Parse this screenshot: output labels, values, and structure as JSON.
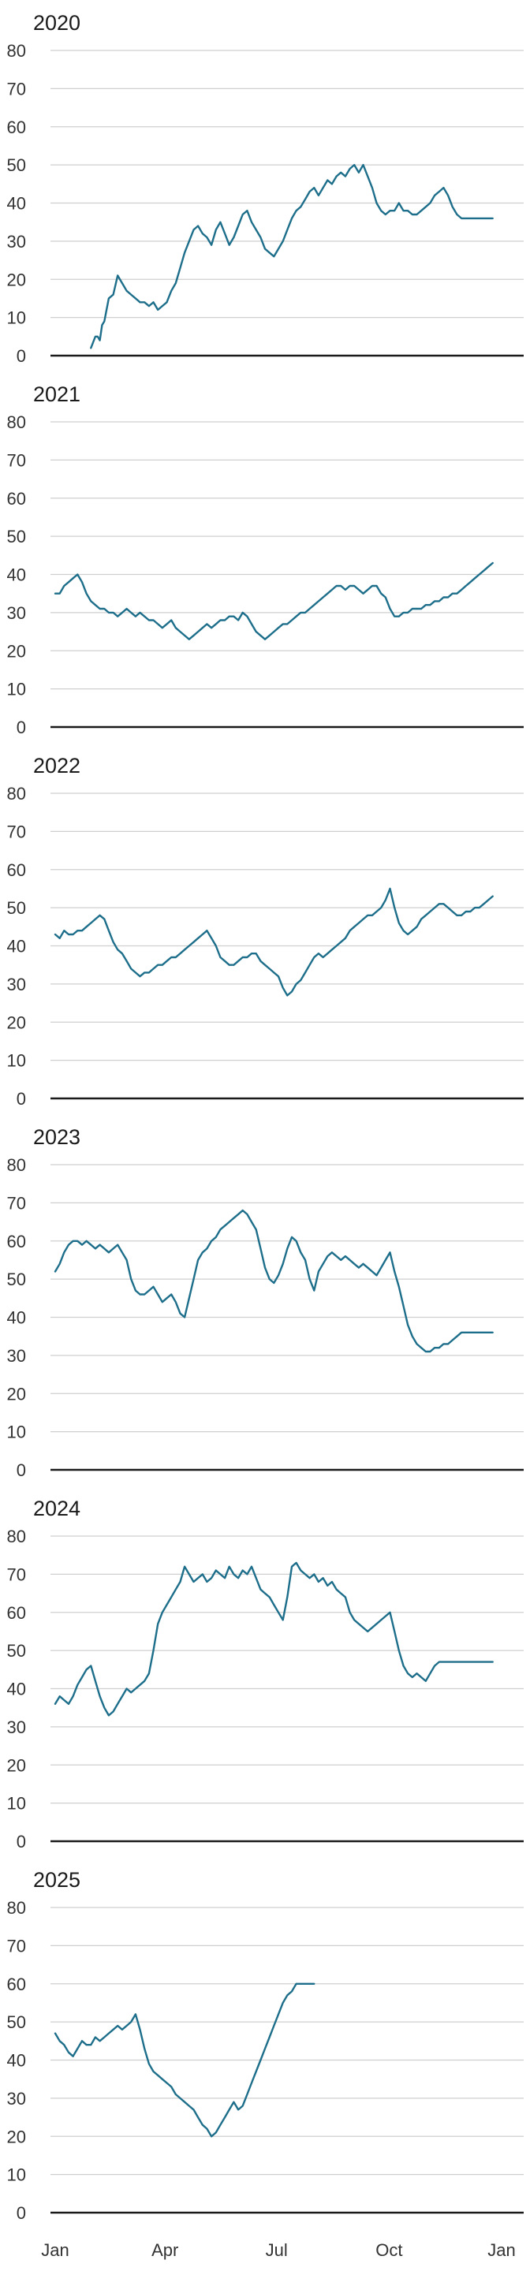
{
  "colors": {
    "line": "#1d6e8a",
    "grid": "#cfcfcf",
    "axis": "#1a1a1a",
    "text": "#333333"
  },
  "chart_data": [
    {
      "type": "line",
      "title": "2020",
      "ylim": [
        0,
        80
      ],
      "yticks": [
        0,
        10,
        20,
        30,
        40,
        50,
        60,
        70,
        80
      ],
      "x": [
        0.08,
        0.09,
        0.095,
        0.1,
        0.105,
        0.11,
        0.115,
        0.12,
        0.13,
        0.14,
        0.15,
        0.155,
        0.16,
        0.17,
        0.18,
        0.19,
        0.2,
        0.21,
        0.22,
        0.23,
        0.24,
        0.25,
        0.26,
        0.27,
        0.28,
        0.29,
        0.3,
        0.31,
        0.32,
        0.33,
        0.34,
        0.35,
        0.36,
        0.37,
        0.38,
        0.39,
        0.4,
        0.41,
        0.42,
        0.43,
        0.44,
        0.45,
        0.46,
        0.47,
        0.48,
        0.49,
        0.5,
        0.51,
        0.52,
        0.53,
        0.54,
        0.55,
        0.56,
        0.57,
        0.58,
        0.59,
        0.6,
        0.61,
        0.62,
        0.63,
        0.64,
        0.65,
        0.66,
        0.67,
        0.68,
        0.69,
        0.7,
        0.71,
        0.72,
        0.73,
        0.74,
        0.75,
        0.76,
        0.77,
        0.78,
        0.79,
        0.8,
        0.81,
        0.82,
        0.83,
        0.84,
        0.85,
        0.86,
        0.87,
        0.88,
        0.89,
        0.9,
        0.91,
        0.92,
        0.93,
        0.94,
        0.95,
        0.96,
        0.97,
        0.98
      ],
      "values": [
        2,
        5,
        5,
        4,
        8,
        9,
        12,
        15,
        16,
        21,
        19,
        18,
        17,
        16,
        15,
        14,
        14,
        13,
        14,
        12,
        13,
        14,
        17,
        19,
        23,
        27,
        30,
        33,
        34,
        32,
        31,
        29,
        33,
        35,
        32,
        29,
        31,
        34,
        37,
        38,
        35,
        33,
        31,
        28,
        27,
        26,
        28,
        30,
        33,
        36,
        38,
        39,
        41,
        43,
        44,
        42,
        44,
        46,
        45,
        47,
        48,
        47,
        49,
        50,
        48,
        50,
        47,
        44,
        40,
        38,
        37,
        38,
        38,
        40,
        38,
        38,
        37,
        37,
        38,
        39,
        40,
        42,
        43,
        44,
        42,
        39,
        37,
        36,
        36,
        36,
        36,
        36,
        36,
        36,
        36
      ]
    },
    {
      "type": "line",
      "title": "2021",
      "ylim": [
        0,
        80
      ],
      "yticks": [
        0,
        10,
        20,
        30,
        40,
        50,
        60,
        70,
        80
      ],
      "x": [
        0.0,
        0.01,
        0.02,
        0.03,
        0.04,
        0.05,
        0.06,
        0.07,
        0.08,
        0.09,
        0.1,
        0.11,
        0.12,
        0.13,
        0.14,
        0.15,
        0.16,
        0.17,
        0.18,
        0.19,
        0.2,
        0.21,
        0.22,
        0.23,
        0.24,
        0.25,
        0.26,
        0.27,
        0.28,
        0.29,
        0.3,
        0.31,
        0.32,
        0.33,
        0.34,
        0.35,
        0.36,
        0.37,
        0.38,
        0.39,
        0.4,
        0.41,
        0.42,
        0.43,
        0.44,
        0.45,
        0.46,
        0.47,
        0.48,
        0.49,
        0.5,
        0.51,
        0.52,
        0.53,
        0.54,
        0.55,
        0.56,
        0.57,
        0.58,
        0.59,
        0.6,
        0.61,
        0.62,
        0.63,
        0.64,
        0.65,
        0.66,
        0.67,
        0.68,
        0.69,
        0.7,
        0.71,
        0.72,
        0.73,
        0.74,
        0.75,
        0.76,
        0.77,
        0.78,
        0.79,
        0.8,
        0.81,
        0.82,
        0.83,
        0.84,
        0.85,
        0.86,
        0.87,
        0.88,
        0.89,
        0.9,
        0.91,
        0.92,
        0.93,
        0.94,
        0.95,
        0.96,
        0.97,
        0.98
      ],
      "values": [
        35,
        35,
        37,
        38,
        39,
        40,
        38,
        35,
        33,
        32,
        31,
        31,
        30,
        30,
        29,
        30,
        31,
        30,
        29,
        30,
        29,
        28,
        28,
        27,
        26,
        27,
        28,
        26,
        25,
        24,
        23,
        24,
        25,
        26,
        27,
        26,
        27,
        28,
        28,
        29,
        29,
        28,
        30,
        29,
        27,
        25,
        24,
        23,
        24,
        25,
        26,
        27,
        27,
        28,
        29,
        30,
        30,
        31,
        32,
        33,
        34,
        35,
        36,
        37,
        37,
        36,
        37,
        37,
        36,
        35,
        36,
        37,
        37,
        35,
        34,
        31,
        29,
        29,
        30,
        30,
        31,
        31,
        31,
        32,
        32,
        33,
        33,
        34,
        34,
        35,
        35,
        36,
        37,
        38,
        39,
        40,
        41,
        42,
        43
      ]
    },
    {
      "type": "line",
      "title": "2022",
      "ylim": [
        0,
        80
      ],
      "yticks": [
        0,
        10,
        20,
        30,
        40,
        50,
        60,
        70,
        80
      ],
      "x": [
        0.0,
        0.01,
        0.02,
        0.03,
        0.04,
        0.05,
        0.06,
        0.07,
        0.08,
        0.09,
        0.1,
        0.11,
        0.12,
        0.13,
        0.14,
        0.15,
        0.16,
        0.17,
        0.18,
        0.19,
        0.2,
        0.21,
        0.22,
        0.23,
        0.24,
        0.25,
        0.26,
        0.27,
        0.28,
        0.29,
        0.3,
        0.31,
        0.32,
        0.33,
        0.34,
        0.35,
        0.36,
        0.37,
        0.38,
        0.39,
        0.4,
        0.41,
        0.42,
        0.43,
        0.44,
        0.45,
        0.46,
        0.47,
        0.48,
        0.49,
        0.5,
        0.51,
        0.52,
        0.53,
        0.54,
        0.55,
        0.56,
        0.57,
        0.58,
        0.59,
        0.6,
        0.61,
        0.62,
        0.63,
        0.64,
        0.65,
        0.66,
        0.67,
        0.68,
        0.69,
        0.7,
        0.71,
        0.72,
        0.73,
        0.74,
        0.75,
        0.76,
        0.77,
        0.78,
        0.79,
        0.8,
        0.81,
        0.82,
        0.83,
        0.84,
        0.85,
        0.86,
        0.87,
        0.88,
        0.89,
        0.9,
        0.91,
        0.92,
        0.93,
        0.94,
        0.95,
        0.96,
        0.97,
        0.98
      ],
      "values": [
        43,
        42,
        44,
        43,
        43,
        44,
        44,
        45,
        46,
        47,
        48,
        47,
        44,
        41,
        39,
        38,
        36,
        34,
        33,
        32,
        33,
        33,
        34,
        35,
        35,
        36,
        37,
        37,
        38,
        39,
        40,
        41,
        42,
        43,
        44,
        42,
        40,
        37,
        36,
        35,
        35,
        36,
        37,
        37,
        38,
        38,
        36,
        35,
        34,
        33,
        32,
        29,
        27,
        28,
        30,
        31,
        33,
        35,
        37,
        38,
        37,
        38,
        39,
        40,
        41,
        42,
        44,
        45,
        46,
        47,
        48,
        48,
        49,
        50,
        52,
        55,
        50,
        46,
        44,
        43,
        44,
        45,
        47,
        48,
        49,
        50,
        51,
        51,
        50,
        49,
        48,
        48,
        49,
        49,
        50,
        50,
        51,
        52,
        53
      ]
    },
    {
      "type": "line",
      "title": "2023",
      "ylim": [
        0,
        80
      ],
      "yticks": [
        0,
        10,
        20,
        30,
        40,
        50,
        60,
        70,
        80
      ],
      "x": [
        0.0,
        0.01,
        0.02,
        0.03,
        0.04,
        0.05,
        0.06,
        0.07,
        0.08,
        0.09,
        0.1,
        0.11,
        0.12,
        0.13,
        0.14,
        0.15,
        0.16,
        0.17,
        0.18,
        0.19,
        0.2,
        0.21,
        0.22,
        0.23,
        0.24,
        0.25,
        0.26,
        0.27,
        0.28,
        0.29,
        0.3,
        0.31,
        0.32,
        0.33,
        0.34,
        0.35,
        0.36,
        0.37,
        0.38,
        0.39,
        0.4,
        0.41,
        0.42,
        0.43,
        0.44,
        0.45,
        0.46,
        0.47,
        0.48,
        0.49,
        0.5,
        0.51,
        0.52,
        0.53,
        0.54,
        0.55,
        0.56,
        0.57,
        0.58,
        0.59,
        0.6,
        0.61,
        0.62,
        0.63,
        0.64,
        0.65,
        0.66,
        0.67,
        0.68,
        0.69,
        0.7,
        0.71,
        0.72,
        0.73,
        0.74,
        0.75,
        0.76,
        0.77,
        0.78,
        0.79,
        0.8,
        0.81,
        0.82,
        0.83,
        0.84,
        0.85,
        0.86,
        0.87,
        0.88,
        0.89,
        0.9,
        0.91,
        0.92,
        0.93,
        0.94,
        0.95,
        0.96,
        0.97,
        0.98
      ],
      "values": [
        52,
        54,
        57,
        59,
        60,
        60,
        59,
        60,
        59,
        58,
        59,
        58,
        57,
        58,
        59,
        57,
        55,
        50,
        47,
        46,
        46,
        47,
        48,
        46,
        44,
        45,
        46,
        44,
        41,
        40,
        45,
        50,
        55,
        57,
        58,
        60,
        61,
        63,
        64,
        65,
        66,
        67,
        68,
        67,
        65,
        63,
        58,
        53,
        50,
        49,
        51,
        54,
        58,
        61,
        60,
        57,
        55,
        50,
        47,
        52,
        54,
        56,
        57,
        56,
        55,
        56,
        55,
        54,
        53,
        54,
        53,
        52,
        51,
        53,
        55,
        57,
        52,
        48,
        43,
        38,
        35,
        33,
        32,
        31,
        31,
        32,
        32,
        33,
        33,
        34,
        35,
        36,
        36,
        36,
        36,
        36,
        36,
        36,
        36
      ]
    },
    {
      "type": "line",
      "title": "2024",
      "ylim": [
        0,
        80
      ],
      "yticks": [
        0,
        10,
        20,
        30,
        40,
        50,
        60,
        70,
        80
      ],
      "x": [
        0.0,
        0.01,
        0.02,
        0.03,
        0.04,
        0.05,
        0.06,
        0.07,
        0.08,
        0.09,
        0.1,
        0.11,
        0.12,
        0.13,
        0.14,
        0.15,
        0.16,
        0.17,
        0.18,
        0.19,
        0.2,
        0.21,
        0.22,
        0.23,
        0.24,
        0.25,
        0.26,
        0.27,
        0.28,
        0.29,
        0.3,
        0.31,
        0.32,
        0.33,
        0.34,
        0.35,
        0.36,
        0.37,
        0.38,
        0.39,
        0.4,
        0.41,
        0.42,
        0.43,
        0.44,
        0.45,
        0.46,
        0.47,
        0.48,
        0.49,
        0.5,
        0.51,
        0.52,
        0.53,
        0.54,
        0.55,
        0.56,
        0.57,
        0.58,
        0.59,
        0.6,
        0.61,
        0.62,
        0.63,
        0.64,
        0.65,
        0.66,
        0.67,
        0.68,
        0.69,
        0.7,
        0.71,
        0.72,
        0.73,
        0.74,
        0.75,
        0.76,
        0.77,
        0.78,
        0.79,
        0.8,
        0.81,
        0.82,
        0.83,
        0.84,
        0.85,
        0.86,
        0.87,
        0.88,
        0.89,
        0.9,
        0.91,
        0.92,
        0.93,
        0.94,
        0.95,
        0.96,
        0.97,
        0.98
      ],
      "values": [
        36,
        38,
        37,
        36,
        38,
        41,
        43,
        45,
        46,
        42,
        38,
        35,
        33,
        34,
        36,
        38,
        40,
        39,
        40,
        41,
        42,
        44,
        50,
        57,
        60,
        62,
        64,
        66,
        68,
        72,
        70,
        68,
        69,
        70,
        68,
        69,
        71,
        70,
        69,
        72,
        70,
        69,
        71,
        70,
        72,
        69,
        66,
        65,
        64,
        62,
        60,
        58,
        64,
        72,
        73,
        71,
        70,
        69,
        70,
        68,
        69,
        67,
        68,
        66,
        65,
        64,
        60,
        58,
        57,
        56,
        55,
        56,
        57,
        58,
        59,
        60,
        55,
        50,
        46,
        44,
        43,
        44,
        43,
        42,
        44,
        46,
        47,
        47,
        47,
        47,
        47,
        47,
        47,
        47,
        47,
        47,
        47,
        47,
        47
      ]
    },
    {
      "type": "line",
      "title": "2025",
      "ylim": [
        0,
        80
      ],
      "yticks": [
        0,
        10,
        20,
        30,
        40,
        50,
        60,
        70,
        80
      ],
      "x": [
        0.0,
        0.01,
        0.02,
        0.03,
        0.04,
        0.05,
        0.06,
        0.07,
        0.08,
        0.09,
        0.1,
        0.11,
        0.12,
        0.13,
        0.14,
        0.15,
        0.16,
        0.17,
        0.18,
        0.19,
        0.2,
        0.21,
        0.22,
        0.23,
        0.24,
        0.25,
        0.26,
        0.27,
        0.28,
        0.29,
        0.3,
        0.31,
        0.32,
        0.33,
        0.34,
        0.35,
        0.36,
        0.37,
        0.38,
        0.39,
        0.4,
        0.41,
        0.42,
        0.43,
        0.44,
        0.45,
        0.46,
        0.47,
        0.48,
        0.49,
        0.5,
        0.51,
        0.52,
        0.53,
        0.54,
        0.55,
        0.56,
        0.57,
        0.58
      ],
      "values": [
        47,
        45,
        44,
        42,
        41,
        43,
        45,
        44,
        44,
        46,
        45,
        46,
        47,
        48,
        49,
        48,
        49,
        50,
        52,
        48,
        43,
        39,
        37,
        36,
        35,
        34,
        33,
        31,
        30,
        29,
        28,
        27,
        25,
        23,
        22,
        20,
        21,
        23,
        25,
        27,
        29,
        27,
        28,
        31,
        34,
        37,
        40,
        43,
        46,
        49,
        52,
        55,
        57,
        58,
        60,
        60,
        60,
        60,
        60
      ]
    }
  ],
  "x_axis": {
    "ticks": [
      0.0,
      0.246,
      0.496,
      0.748,
      1.0
    ],
    "labels": [
      "Jan",
      "Apr",
      "Jul",
      "Oct",
      "Jan"
    ]
  }
}
